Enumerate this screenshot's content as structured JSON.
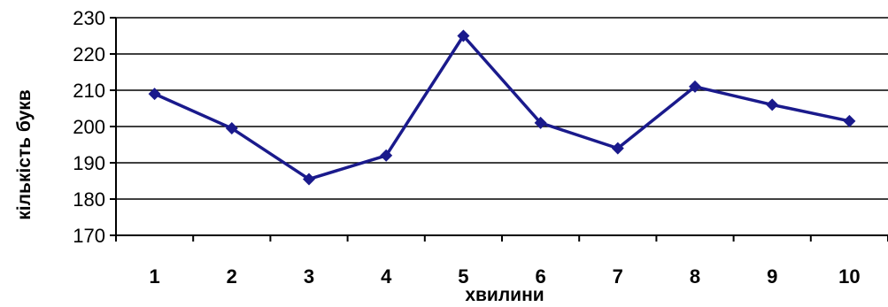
{
  "chart_data": {
    "type": "line",
    "title": "",
    "xlabel": "хвилини",
    "ylabel": "кількість букв",
    "categories": [
      "1",
      "2",
      "3",
      "4",
      "5",
      "6",
      "7",
      "8",
      "9",
      "10"
    ],
    "series": [
      {
        "values": [
          209,
          199.5,
          185.5,
          192,
          225,
          201,
          194,
          211,
          206,
          201.5
        ]
      }
    ],
    "yticks": [
      "170",
      "180",
      "190",
      "200",
      "210",
      "220",
      "230"
    ],
    "ylim": [
      170,
      230
    ],
    "grid": "horizontal",
    "legend": "none",
    "colors": {
      "series": "#1a1a8c",
      "grid": "#000000",
      "axis": "#000000"
    },
    "marker": "diamond"
  }
}
